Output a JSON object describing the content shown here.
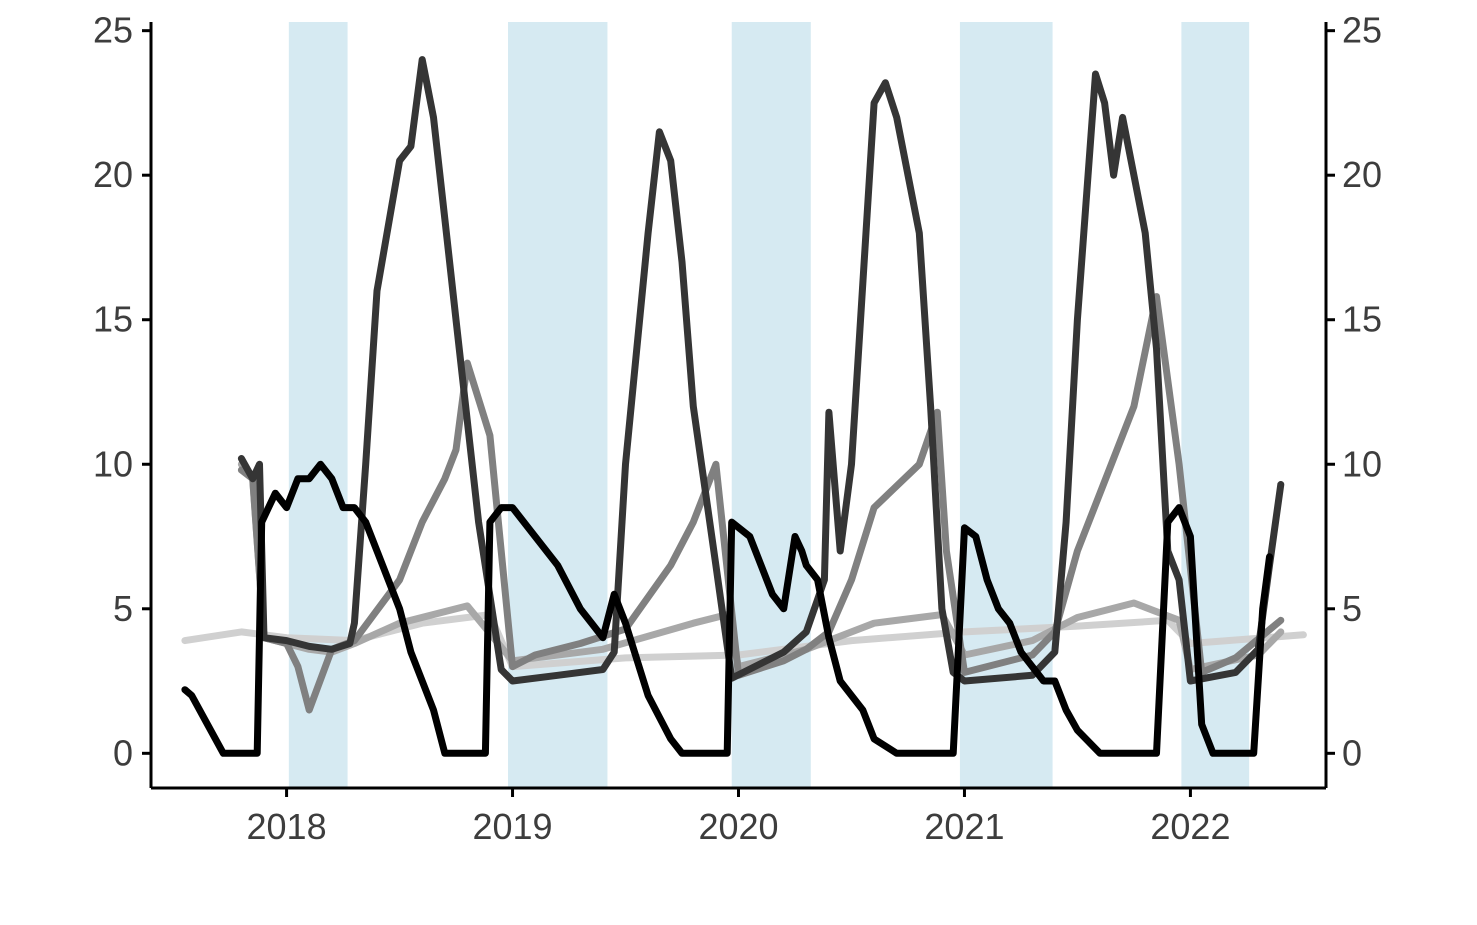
{
  "chart_data": {
    "type": "line",
    "title": "",
    "xlabel": "",
    "ylabel": "",
    "xlim": [
      2017.4,
      2022.6
    ],
    "ylim": [
      -1.2,
      25.3
    ],
    "x_ticks": [
      2018,
      2019,
      2020,
      2021,
      2022
    ],
    "x_tick_labels": [
      "2018",
      "2019",
      "2020",
      "2021",
      "2022"
    ],
    "y_ticks": [
      0,
      5,
      10,
      15,
      20,
      25
    ],
    "y_tick_labels": [
      "0",
      "5",
      "10",
      "15",
      "20",
      "25"
    ],
    "secondary_y_axis": true,
    "grid": false,
    "legend": "none",
    "shaded_periods": {
      "color": "#d6eaf2",
      "ranges": [
        [
          2018.01,
          2018.27
        ],
        [
          2018.98,
          2019.42
        ],
        [
          2019.97,
          2020.32
        ],
        [
          2020.98,
          2021.39
        ],
        [
          2021.96,
          2022.26
        ]
      ]
    },
    "series": [
      {
        "color": "#d0d0d0",
        "width": 7,
        "x": [
          2017.55,
          2017.8,
          2018.0,
          2018.3,
          2018.6,
          2018.9,
          2019.0,
          2019.5,
          2020.0,
          2020.5,
          2021.0,
          2021.5,
          2021.9,
          2022.0,
          2022.5
        ],
        "y": [
          3.9,
          4.2,
          4.0,
          3.9,
          4.5,
          4.8,
          3.0,
          3.3,
          3.4,
          3.9,
          4.2,
          4.4,
          4.6,
          3.8,
          4.1
        ]
      },
      {
        "color": "#a8a8a8",
        "width": 7,
        "x": [
          2017.8,
          2017.85,
          2017.9,
          2018.0,
          2018.1,
          2018.2,
          2018.3,
          2018.5,
          2018.8,
          2019.0,
          2019.4,
          2019.8,
          2019.95,
          2020.0,
          2020.3,
          2020.6,
          2020.9,
          2021.0,
          2021.3,
          2021.5,
          2021.75,
          2021.95,
          2022.0,
          2022.3,
          2022.4
        ],
        "y": [
          10.0,
          9.5,
          4.0,
          3.8,
          3.6,
          3.5,
          3.8,
          4.5,
          5.1,
          3.2,
          3.6,
          4.5,
          4.8,
          3.0,
          3.6,
          4.5,
          4.8,
          3.4,
          3.9,
          4.7,
          5.2,
          4.6,
          2.9,
          3.4,
          4.2
        ]
      },
      {
        "color": "#808080",
        "width": 7,
        "x": [
          2017.8,
          2017.85,
          2017.9,
          2018.0,
          2018.05,
          2018.1,
          2018.2,
          2018.3,
          2018.5,
          2018.6,
          2018.7,
          2018.75,
          2018.8,
          2018.9,
          2019.0,
          2019.1,
          2019.3,
          2019.5,
          2019.7,
          2019.8,
          2019.9,
          2020.0,
          2020.2,
          2020.3,
          2020.4,
          2020.5,
          2020.6,
          2020.8,
          2020.88,
          2020.92,
          2021.0,
          2021.3,
          2021.4,
          2021.5,
          2021.65,
          2021.75,
          2021.85,
          2021.95,
          2022.05,
          2022.2,
          2022.4
        ],
        "y": [
          9.8,
          9.5,
          4.0,
          3.8,
          3.0,
          1.5,
          3.6,
          3.9,
          6.0,
          8.0,
          9.5,
          10.5,
          13.5,
          11.0,
          3.0,
          3.4,
          3.8,
          4.3,
          6.5,
          8.0,
          10.0,
          2.7,
          3.2,
          3.6,
          4.2,
          6.0,
          8.5,
          10.0,
          11.8,
          7.0,
          2.8,
          3.4,
          4.2,
          7.0,
          10.0,
          12.0,
          15.8,
          10.0,
          2.8,
          3.3,
          4.6
        ]
      },
      {
        "color": "#353535",
        "width": 8,
        "x": [
          2017.8,
          2017.85,
          2017.88,
          2017.9,
          2018.0,
          2018.1,
          2018.2,
          2018.28,
          2018.3,
          2018.35,
          2018.4,
          2018.5,
          2018.55,
          2018.6,
          2018.65,
          2018.7,
          2018.75,
          2018.85,
          2018.95,
          2019.0,
          2019.2,
          2019.4,
          2019.45,
          2019.5,
          2019.6,
          2019.65,
          2019.7,
          2019.75,
          2019.8,
          2019.9,
          2019.97,
          2020.2,
          2020.3,
          2020.38,
          2020.4,
          2020.45,
          2020.5,
          2020.6,
          2020.65,
          2020.7,
          2020.8,
          2020.85,
          2020.9,
          2020.95,
          2021.0,
          2021.3,
          2021.4,
          2021.45,
          2021.5,
          2021.58,
          2021.62,
          2021.66,
          2021.7,
          2021.8,
          2021.85,
          2021.9,
          2021.95,
          2022.0,
          2022.2,
          2022.3,
          2022.35,
          2022.4
        ],
        "y": [
          10.2,
          9.5,
          10.0,
          4.0,
          3.9,
          3.7,
          3.6,
          3.8,
          4.5,
          10.0,
          16.0,
          20.5,
          21.0,
          24.0,
          22.0,
          18.5,
          15.0,
          8.0,
          2.9,
          2.5,
          2.7,
          2.9,
          3.5,
          10.0,
          18.0,
          21.5,
          20.5,
          17.0,
          12.0,
          6.5,
          2.6,
          3.5,
          4.2,
          6.0,
          11.8,
          7.0,
          10.0,
          22.5,
          23.2,
          22.0,
          18.0,
          12.0,
          5.0,
          2.8,
          2.5,
          2.7,
          3.5,
          8.0,
          15.0,
          23.5,
          22.5,
          20.0,
          22.0,
          18.0,
          14.0,
          7.0,
          6.0,
          2.5,
          2.8,
          3.6,
          6.5,
          9.3
        ]
      },
      {
        "color": "#000000",
        "width": 9,
        "x": [
          2017.55,
          2017.58,
          2017.65,
          2017.72,
          2017.8,
          2017.87,
          2017.89,
          2017.95,
          2018.0,
          2018.05,
          2018.1,
          2018.15,
          2018.2,
          2018.25,
          2018.3,
          2018.35,
          2018.4,
          2018.5,
          2018.55,
          2018.6,
          2018.65,
          2018.7,
          2018.75,
          2018.8,
          2018.85,
          2018.88,
          2018.9,
          2018.95,
          2019.0,
          2019.1,
          2019.2,
          2019.3,
          2019.35,
          2019.4,
          2019.45,
          2019.5,
          2019.6,
          2019.7,
          2019.75,
          2019.8,
          2019.85,
          2019.9,
          2019.95,
          2019.97,
          2020.05,
          2020.1,
          2020.15,
          2020.2,
          2020.25,
          2020.28,
          2020.3,
          2020.35,
          2020.4,
          2020.45,
          2020.5,
          2020.55,
          2020.6,
          2020.7,
          2020.8,
          2020.87,
          2020.9,
          2020.95,
          2021.0,
          2021.05,
          2021.1,
          2021.15,
          2021.2,
          2021.25,
          2021.3,
          2021.35,
          2021.4,
          2021.45,
          2021.5,
          2021.6,
          2021.7,
          2021.8,
          2021.82,
          2021.85,
          2021.9,
          2021.95,
          2022.0,
          2022.05,
          2022.1,
          2022.2,
          2022.25,
          2022.28,
          2022.32,
          2022.35
        ],
        "y": [
          2.2,
          2.0,
          1.0,
          0.0,
          0.0,
          0.0,
          8.0,
          9.0,
          8.5,
          9.5,
          9.5,
          10.0,
          9.5,
          8.5,
          8.5,
          8.0,
          7.0,
          5.0,
          3.5,
          2.5,
          1.5,
          0.0,
          0.0,
          0.0,
          0.0,
          0.0,
          8.0,
          8.5,
          8.5,
          7.5,
          6.5,
          5.0,
          4.5,
          4.0,
          5.5,
          4.5,
          2.0,
          0.5,
          0.0,
          0.0,
          0.0,
          0.0,
          0.0,
          8.0,
          7.5,
          6.5,
          5.5,
          5.0,
          7.5,
          7.0,
          6.5,
          6.0,
          4.0,
          2.5,
          2.0,
          1.5,
          0.5,
          0.0,
          0.0,
          0.0,
          0.0,
          0.0,
          7.8,
          7.5,
          6.0,
          5.0,
          4.5,
          3.5,
          3.0,
          2.5,
          2.5,
          1.5,
          0.8,
          0.0,
          0.0,
          0.0,
          0.0,
          0.0,
          8.0,
          8.5,
          7.5,
          1.0,
          0.0,
          0.0,
          0.0,
          0.0,
          5.0,
          6.8
        ]
      }
    ]
  }
}
